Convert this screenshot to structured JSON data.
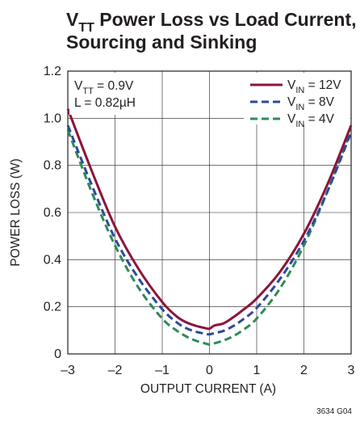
{
  "chart_data": {
    "type": "line",
    "title": {
      "line1": {
        "main": "V",
        "sub": "TT",
        "rest": " Power Loss vs Load Current,"
      },
      "line2": "Sourcing and Sinking"
    },
    "xlabel": "OUTPUT CURRENT (A)",
    "ylabel": "POWER LOSS (W)",
    "xlim": [
      -3,
      3
    ],
    "ylim": [
      0,
      1.2
    ],
    "xticks": [
      -3,
      -2,
      -1,
      0,
      1,
      2,
      3
    ],
    "xtick_labels": [
      "–3",
      "–2",
      "–1",
      "0",
      "1",
      "2",
      "3"
    ],
    "yticks": [
      0,
      0.2,
      0.4,
      0.6,
      0.8,
      1.0,
      1.2
    ],
    "ytick_labels": [
      "0",
      "0.2",
      "0.4",
      "0.6",
      "0.8",
      "1.0",
      "1.2"
    ],
    "grid": true,
    "legend_position": "top-right",
    "conditions": [
      {
        "main": "V",
        "sub": "TT",
        "rest": " = 0.9V"
      },
      {
        "main": "L = 0.82µH",
        "sub": "",
        "rest": ""
      }
    ],
    "x": [
      -3.0,
      -2.5,
      -2.0,
      -1.5,
      -1.0,
      -0.7,
      -0.5,
      -0.3,
      -0.1,
      0.0,
      0.1,
      0.3,
      0.5,
      0.7,
      1.0,
      1.5,
      2.0,
      2.5,
      3.0
    ],
    "series": [
      {
        "name": {
          "main": "V",
          "sub": "IN",
          "rest": " = 12V"
        },
        "color": "#8b1538",
        "dash": "solid",
        "values": [
          1.04,
          0.78,
          0.54,
          0.36,
          0.22,
          0.16,
          0.135,
          0.12,
          0.11,
          0.107,
          0.12,
          0.13,
          0.155,
          0.185,
          0.235,
          0.35,
          0.51,
          0.72,
          0.97
        ]
      },
      {
        "name": {
          "main": "V",
          "sub": "IN",
          "rest": " = 8V"
        },
        "color": "#2b4a9b",
        "dash": "dashed",
        "values": [
          0.97,
          0.72,
          0.49,
          0.32,
          0.19,
          0.135,
          0.11,
          0.095,
          0.086,
          0.083,
          0.088,
          0.098,
          0.118,
          0.145,
          0.195,
          0.32,
          0.48,
          0.69,
          0.94
        ]
      },
      {
        "name": {
          "main": "V",
          "sub": "IN",
          "rest": " = 4V"
        },
        "color": "#2e8b57",
        "dash": "dashed",
        "values": [
          0.95,
          0.69,
          0.46,
          0.28,
          0.15,
          0.1,
          0.075,
          0.057,
          0.045,
          0.04,
          0.045,
          0.057,
          0.075,
          0.1,
          0.15,
          0.28,
          0.46,
          0.69,
          0.95
        ]
      }
    ],
    "figure_code": "3634 G04"
  }
}
